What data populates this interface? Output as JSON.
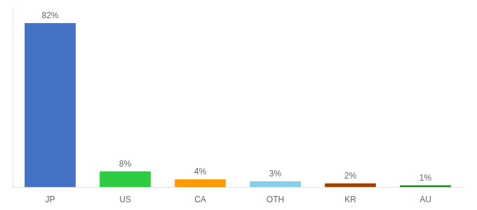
{
  "chart_data": {
    "type": "bar",
    "categories": [
      "JP",
      "US",
      "CA",
      "OTH",
      "KR",
      "AU"
    ],
    "values": [
      82,
      8,
      4,
      3,
      2,
      1
    ],
    "value_labels": [
      "82%",
      "8%",
      "4%",
      "3%",
      "2%",
      "1%"
    ],
    "colors": [
      "#4472c4",
      "#2ecc40",
      "#ff9900",
      "#87ceeb",
      "#9b4400",
      "#1a8a1a"
    ],
    "ylim": [
      0,
      90
    ],
    "grid": false,
    "data_labels": true,
    "tick_labels": "x"
  }
}
